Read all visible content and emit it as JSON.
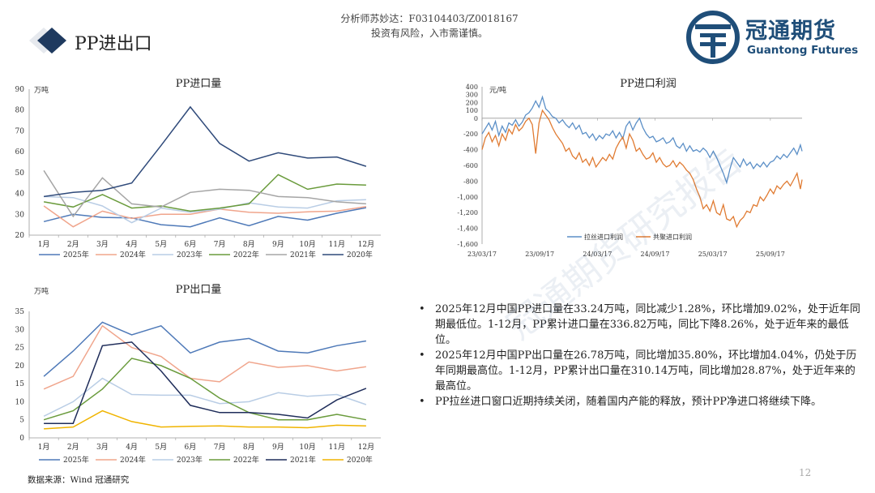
{
  "header": {
    "analyst": "分析师苏妙达：F03104403/Z0018167",
    "disclaimer": "投资有风险，入市需谨慎。"
  },
  "title": "PP进出口",
  "logo": {
    "cn": "冠通期货",
    "en": "Guantong Futures"
  },
  "colors": {
    "title_diamond": "#1f3a5f",
    "series": {
      "2025": "#4e79b8",
      "2024": "#f0a58c",
      "2023": "#b9cde5",
      "2022": "#6a9b3c",
      "2021": "#a5a5a5",
      "2020": "#2f4a7a",
      "2020_export": "#f0b400",
      "2021_export": "#1f2d5a",
      "lasi": "#5b8fc7",
      "gongju": "#e07b32"
    }
  },
  "chart_data": [
    {
      "id": "import",
      "type": "line",
      "title": "PP进口量",
      "unit": "万吨",
      "categories": [
        "1月",
        "2月",
        "3月",
        "4月",
        "5月",
        "6月",
        "7月",
        "8月",
        "9月",
        "10月",
        "11月",
        "12月"
      ],
      "ylim": [
        20,
        90
      ],
      "yticks": [
        20,
        30,
        40,
        50,
        60,
        70,
        80,
        90
      ],
      "legend_position": "bottom",
      "series": [
        {
          "name": "2025年",
          "color_key": "2025",
          "values": [
            26.5,
            30.0,
            28.5,
            28.3,
            25.0,
            24.0,
            28.3,
            24.5,
            29.0,
            27.2,
            30.5,
            33.2
          ]
        },
        {
          "name": "2024年",
          "color_key": "2024",
          "values": [
            34.0,
            24.0,
            31.5,
            28.0,
            30.0,
            30.0,
            32.5,
            31.0,
            30.5,
            31.2,
            31.5,
            33.7
          ]
        },
        {
          "name": "2023年",
          "color_key": "2023",
          "values": [
            38.5,
            38.0,
            34.0,
            26.0,
            33.0,
            31.0,
            32.5,
            35.5,
            33.5,
            33.0,
            36.5,
            37.0
          ]
        },
        {
          "name": "2022年",
          "color_key": "2022",
          "values": [
            36.0,
            33.5,
            39.5,
            33.0,
            34.0,
            31.5,
            33.0,
            35.0,
            49.0,
            42.0,
            44.5,
            44.0
          ]
        },
        {
          "name": "2021年",
          "color_key": "2021",
          "values": [
            51.0,
            29.0,
            47.5,
            35.0,
            33.5,
            40.5,
            42.0,
            41.5,
            38.5,
            38.0,
            36.0,
            35.0
          ]
        },
        {
          "name": "2020年",
          "color_key": "2020",
          "values": [
            38.5,
            40.5,
            41.5,
            45.0,
            63.0,
            81.5,
            64.0,
            55.5,
            59.5,
            57.0,
            57.5,
            53.0
          ]
        }
      ]
    },
    {
      "id": "profit",
      "type": "line",
      "title": "PP进口利润",
      "unit": "元/吨",
      "ylim": [
        -1600,
        400
      ],
      "yticks": [
        400,
        300,
        200,
        100,
        0,
        -200,
        -400,
        -600,
        -800,
        -1000,
        -1200,
        -1400,
        -1600
      ],
      "yticklabels": [
        "400",
        "300",
        "200",
        "100",
        "0",
        "-200",
        "-400",
        "-600",
        "-800",
        "-1,000",
        "-1,200",
        "-1,400",
        "-1,600"
      ],
      "xticks": [
        "23/03/17",
        "23/09/17",
        "24/03/17",
        "24/09/17",
        "25/03/17",
        "25/09/17"
      ],
      "legend_position": "bottom",
      "series": [
        {
          "name": "拉丝进口利润",
          "color_key": "lasi",
          "points": [
            [
              0,
              -200
            ],
            [
              2,
              -130
            ],
            [
              4,
              -60
            ],
            [
              6,
              -150
            ],
            [
              8,
              -40
            ],
            [
              10,
              -220
            ],
            [
              12,
              -100
            ],
            [
              14,
              -180
            ],
            [
              16,
              -60
            ],
            [
              18,
              -90
            ],
            [
              20,
              -20
            ],
            [
              22,
              -100
            ],
            [
              24,
              -50
            ],
            [
              26,
              40
            ],
            [
              28,
              70
            ],
            [
              30,
              130
            ],
            [
              32,
              220
            ],
            [
              34,
              140
            ],
            [
              36,
              270
            ],
            [
              38,
              120
            ],
            [
              40,
              80
            ],
            [
              42,
              20
            ],
            [
              44,
              0
            ],
            [
              46,
              -60
            ],
            [
              48,
              -20
            ],
            [
              50,
              -80
            ],
            [
              52,
              -120
            ],
            [
              54,
              -60
            ],
            [
              56,
              -140
            ],
            [
              58,
              -90
            ],
            [
              60,
              -200
            ],
            [
              62,
              -180
            ],
            [
              64,
              -250
            ],
            [
              66,
              -200
            ],
            [
              68,
              -280
            ],
            [
              70,
              -220
            ],
            [
              72,
              -260
            ],
            [
              74,
              -200
            ],
            [
              76,
              -220
            ],
            [
              78,
              -160
            ],
            [
              80,
              -250
            ],
            [
              82,
              -180
            ],
            [
              84,
              -260
            ],
            [
              86,
              -100
            ],
            [
              88,
              -40
            ],
            [
              90,
              -150
            ],
            [
              92,
              -60
            ],
            [
              94,
              0
            ],
            [
              96,
              -120
            ],
            [
              98,
              -200
            ],
            [
              100,
              -250
            ],
            [
              102,
              -230
            ],
            [
              104,
              -300
            ],
            [
              106,
              -280
            ],
            [
              108,
              -250
            ],
            [
              110,
              -320
            ],
            [
              112,
              -300
            ],
            [
              114,
              -250
            ],
            [
              116,
              -350
            ],
            [
              118,
              -380
            ],
            [
              120,
              -320
            ],
            [
              122,
              -420
            ],
            [
              124,
              -350
            ],
            [
              126,
              -420
            ],
            [
              128,
              -400
            ],
            [
              130,
              -430
            ],
            [
              132,
              -380
            ],
            [
              134,
              -420
            ],
            [
              136,
              -500
            ],
            [
              138,
              -420
            ],
            [
              140,
              -500
            ],
            [
              142,
              -600
            ],
            [
              144,
              -700
            ],
            [
              146,
              -820
            ],
            [
              148,
              -640
            ],
            [
              150,
              -500
            ],
            [
              152,
              -560
            ],
            [
              154,
              -620
            ],
            [
              156,
              -520
            ],
            [
              158,
              -600
            ],
            [
              160,
              -560
            ],
            [
              162,
              -640
            ],
            [
              164,
              -580
            ],
            [
              166,
              -620
            ],
            [
              168,
              -560
            ],
            [
              170,
              -620
            ],
            [
              172,
              -560
            ],
            [
              174,
              -540
            ],
            [
              176,
              -480
            ],
            [
              178,
              -520
            ],
            [
              180,
              -460
            ],
            [
              182,
              -500
            ],
            [
              184,
              -440
            ],
            [
              186,
              -380
            ],
            [
              188,
              -460
            ],
            [
              190,
              -340
            ],
            [
              191,
              -420
            ]
          ]
        },
        {
          "name": "共聚进口利润",
          "color_key": "gongju",
          "points": [
            [
              0,
              -400
            ],
            [
              2,
              -250
            ],
            [
              4,
              -180
            ],
            [
              6,
              -300
            ],
            [
              8,
              -220
            ],
            [
              10,
              -350
            ],
            [
              12,
              -200
            ],
            [
              14,
              -280
            ],
            [
              16,
              -140
            ],
            [
              18,
              -200
            ],
            [
              20,
              -80
            ],
            [
              22,
              -160
            ],
            [
              24,
              -120
            ],
            [
              26,
              -40
            ],
            [
              28,
              0
            ],
            [
              30,
              -80
            ],
            [
              32,
              -450
            ],
            [
              34,
              -60
            ],
            [
              36,
              100
            ],
            [
              38,
              40
            ],
            [
              40,
              -20
            ],
            [
              42,
              -120
            ],
            [
              44,
              -200
            ],
            [
              46,
              -260
            ],
            [
              48,
              -320
            ],
            [
              50,
              -420
            ],
            [
              52,
              -380
            ],
            [
              54,
              -480
            ],
            [
              56,
              -520
            ],
            [
              58,
              -440
            ],
            [
              60,
              -560
            ],
            [
              62,
              -520
            ],
            [
              64,
              -600
            ],
            [
              66,
              -500
            ],
            [
              68,
              -620
            ],
            [
              70,
              -560
            ],
            [
              72,
              -500
            ],
            [
              74,
              -540
            ],
            [
              76,
              -460
            ],
            [
              78,
              -520
            ],
            [
              80,
              -380
            ],
            [
              82,
              -300
            ],
            [
              84,
              -240
            ],
            [
              86,
              -380
            ],
            [
              88,
              -200
            ],
            [
              90,
              -280
            ],
            [
              92,
              -420
            ],
            [
              94,
              -380
            ],
            [
              96,
              -460
            ],
            [
              98,
              -520
            ],
            [
              100,
              -500
            ],
            [
              102,
              -440
            ],
            [
              104,
              -560
            ],
            [
              106,
              -500
            ],
            [
              108,
              -580
            ],
            [
              110,
              -620
            ],
            [
              112,
              -600
            ],
            [
              114,
              -540
            ],
            [
              116,
              -620
            ],
            [
              118,
              -560
            ],
            [
              120,
              -600
            ],
            [
              122,
              -660
            ],
            [
              124,
              -700
            ],
            [
              126,
              -780
            ],
            [
              128,
              -900
            ],
            [
              130,
              -1000
            ],
            [
              132,
              -1150
            ],
            [
              134,
              -1100
            ],
            [
              136,
              -1180
            ],
            [
              138,
              -1050
            ],
            [
              140,
              -1200
            ],
            [
              142,
              -1230
            ],
            [
              144,
              -1100
            ],
            [
              146,
              -1280
            ],
            [
              148,
              -1300
            ],
            [
              150,
              -1250
            ],
            [
              152,
              -1380
            ],
            [
              154,
              -1300
            ],
            [
              156,
              -1260
            ],
            [
              158,
              -1180
            ],
            [
              160,
              -1200
            ],
            [
              162,
              -1100
            ],
            [
              164,
              -1120
            ],
            [
              166,
              -1000
            ],
            [
              168,
              -1050
            ],
            [
              170,
              -980
            ],
            [
              172,
              -900
            ],
            [
              174,
              -960
            ],
            [
              176,
              -860
            ],
            [
              178,
              -900
            ],
            [
              180,
              -840
            ],
            [
              182,
              -800
            ],
            [
              184,
              -860
            ],
            [
              186,
              -780
            ],
            [
              188,
              -700
            ],
            [
              190,
              -900
            ],
            [
              191,
              -780
            ]
          ]
        }
      ]
    },
    {
      "id": "export",
      "type": "line",
      "title": "PP出口量",
      "unit": "万吨",
      "categories": [
        "1月",
        "2月",
        "3月",
        "4月",
        "5月",
        "6月",
        "7月",
        "8月",
        "9月",
        "10月",
        "11月",
        "12月"
      ],
      "ylim": [
        0,
        35
      ],
      "yticks": [
        0,
        5,
        10,
        15,
        20,
        25,
        30,
        35
      ],
      "legend_position": "bottom",
      "series": [
        {
          "name": "2025年",
          "color_key": "2025",
          "values": [
            17.0,
            24.0,
            32.0,
            28.5,
            31.0,
            23.5,
            26.5,
            27.5,
            24.0,
            23.5,
            25.5,
            26.8
          ]
        },
        {
          "name": "2024年",
          "color_key": "2024",
          "values": [
            13.5,
            17.0,
            31.0,
            25.0,
            22.5,
            16.5,
            15.5,
            21.0,
            19.5,
            20.0,
            18.5,
            19.7
          ]
        },
        {
          "name": "2023年",
          "color_key": "2023",
          "values": [
            6.0,
            10.0,
            16.5,
            12.0,
            11.8,
            11.8,
            9.5,
            10.0,
            12.5,
            11.5,
            12.0,
            9.2
          ]
        },
        {
          "name": "2022年",
          "color_key": "2022",
          "values": [
            5.0,
            7.5,
            13.5,
            22.0,
            20.0,
            16.5,
            11.0,
            7.0,
            5.0,
            5.0,
            6.5,
            5.0
          ]
        },
        {
          "name": "2021年",
          "color_key": "2021_export",
          "values": [
            4.0,
            4.0,
            25.5,
            26.5,
            18.5,
            9.0,
            7.0,
            7.0,
            6.5,
            5.5,
            10.5,
            13.7
          ]
        },
        {
          "name": "2020年",
          "color_key": "2020_export",
          "values": [
            2.5,
            3.0,
            7.5,
            4.5,
            3.0,
            3.2,
            3.3,
            3.0,
            3.0,
            2.8,
            3.5,
            3.3
          ]
        }
      ]
    }
  ],
  "bullets": [
    "2025年12月中国PP进口量在33.24万吨，同比减少1.28%，环比增加9.02%，处于近年同期最低位。1-12月，PP累计进口量在336.82万吨，同比下降8.26%，处于近年来的最低位。",
    "2025年12月中国PP出口量在26.78万吨，同比增加35.80%，环比增加4.04%，仍处于历年同期最高位。1-12月，PP累计出口量在310.14万吨，同比增加28.87%，处于近年来的最高位。",
    "PP拉丝进口窗口近期持续关闭，随着国内产能的释放，预计PP净进口将继续下降。"
  ],
  "source": "数据来源：Wind 冠通研究",
  "watermark": "冠通期货研究报告",
  "page_number": "12"
}
